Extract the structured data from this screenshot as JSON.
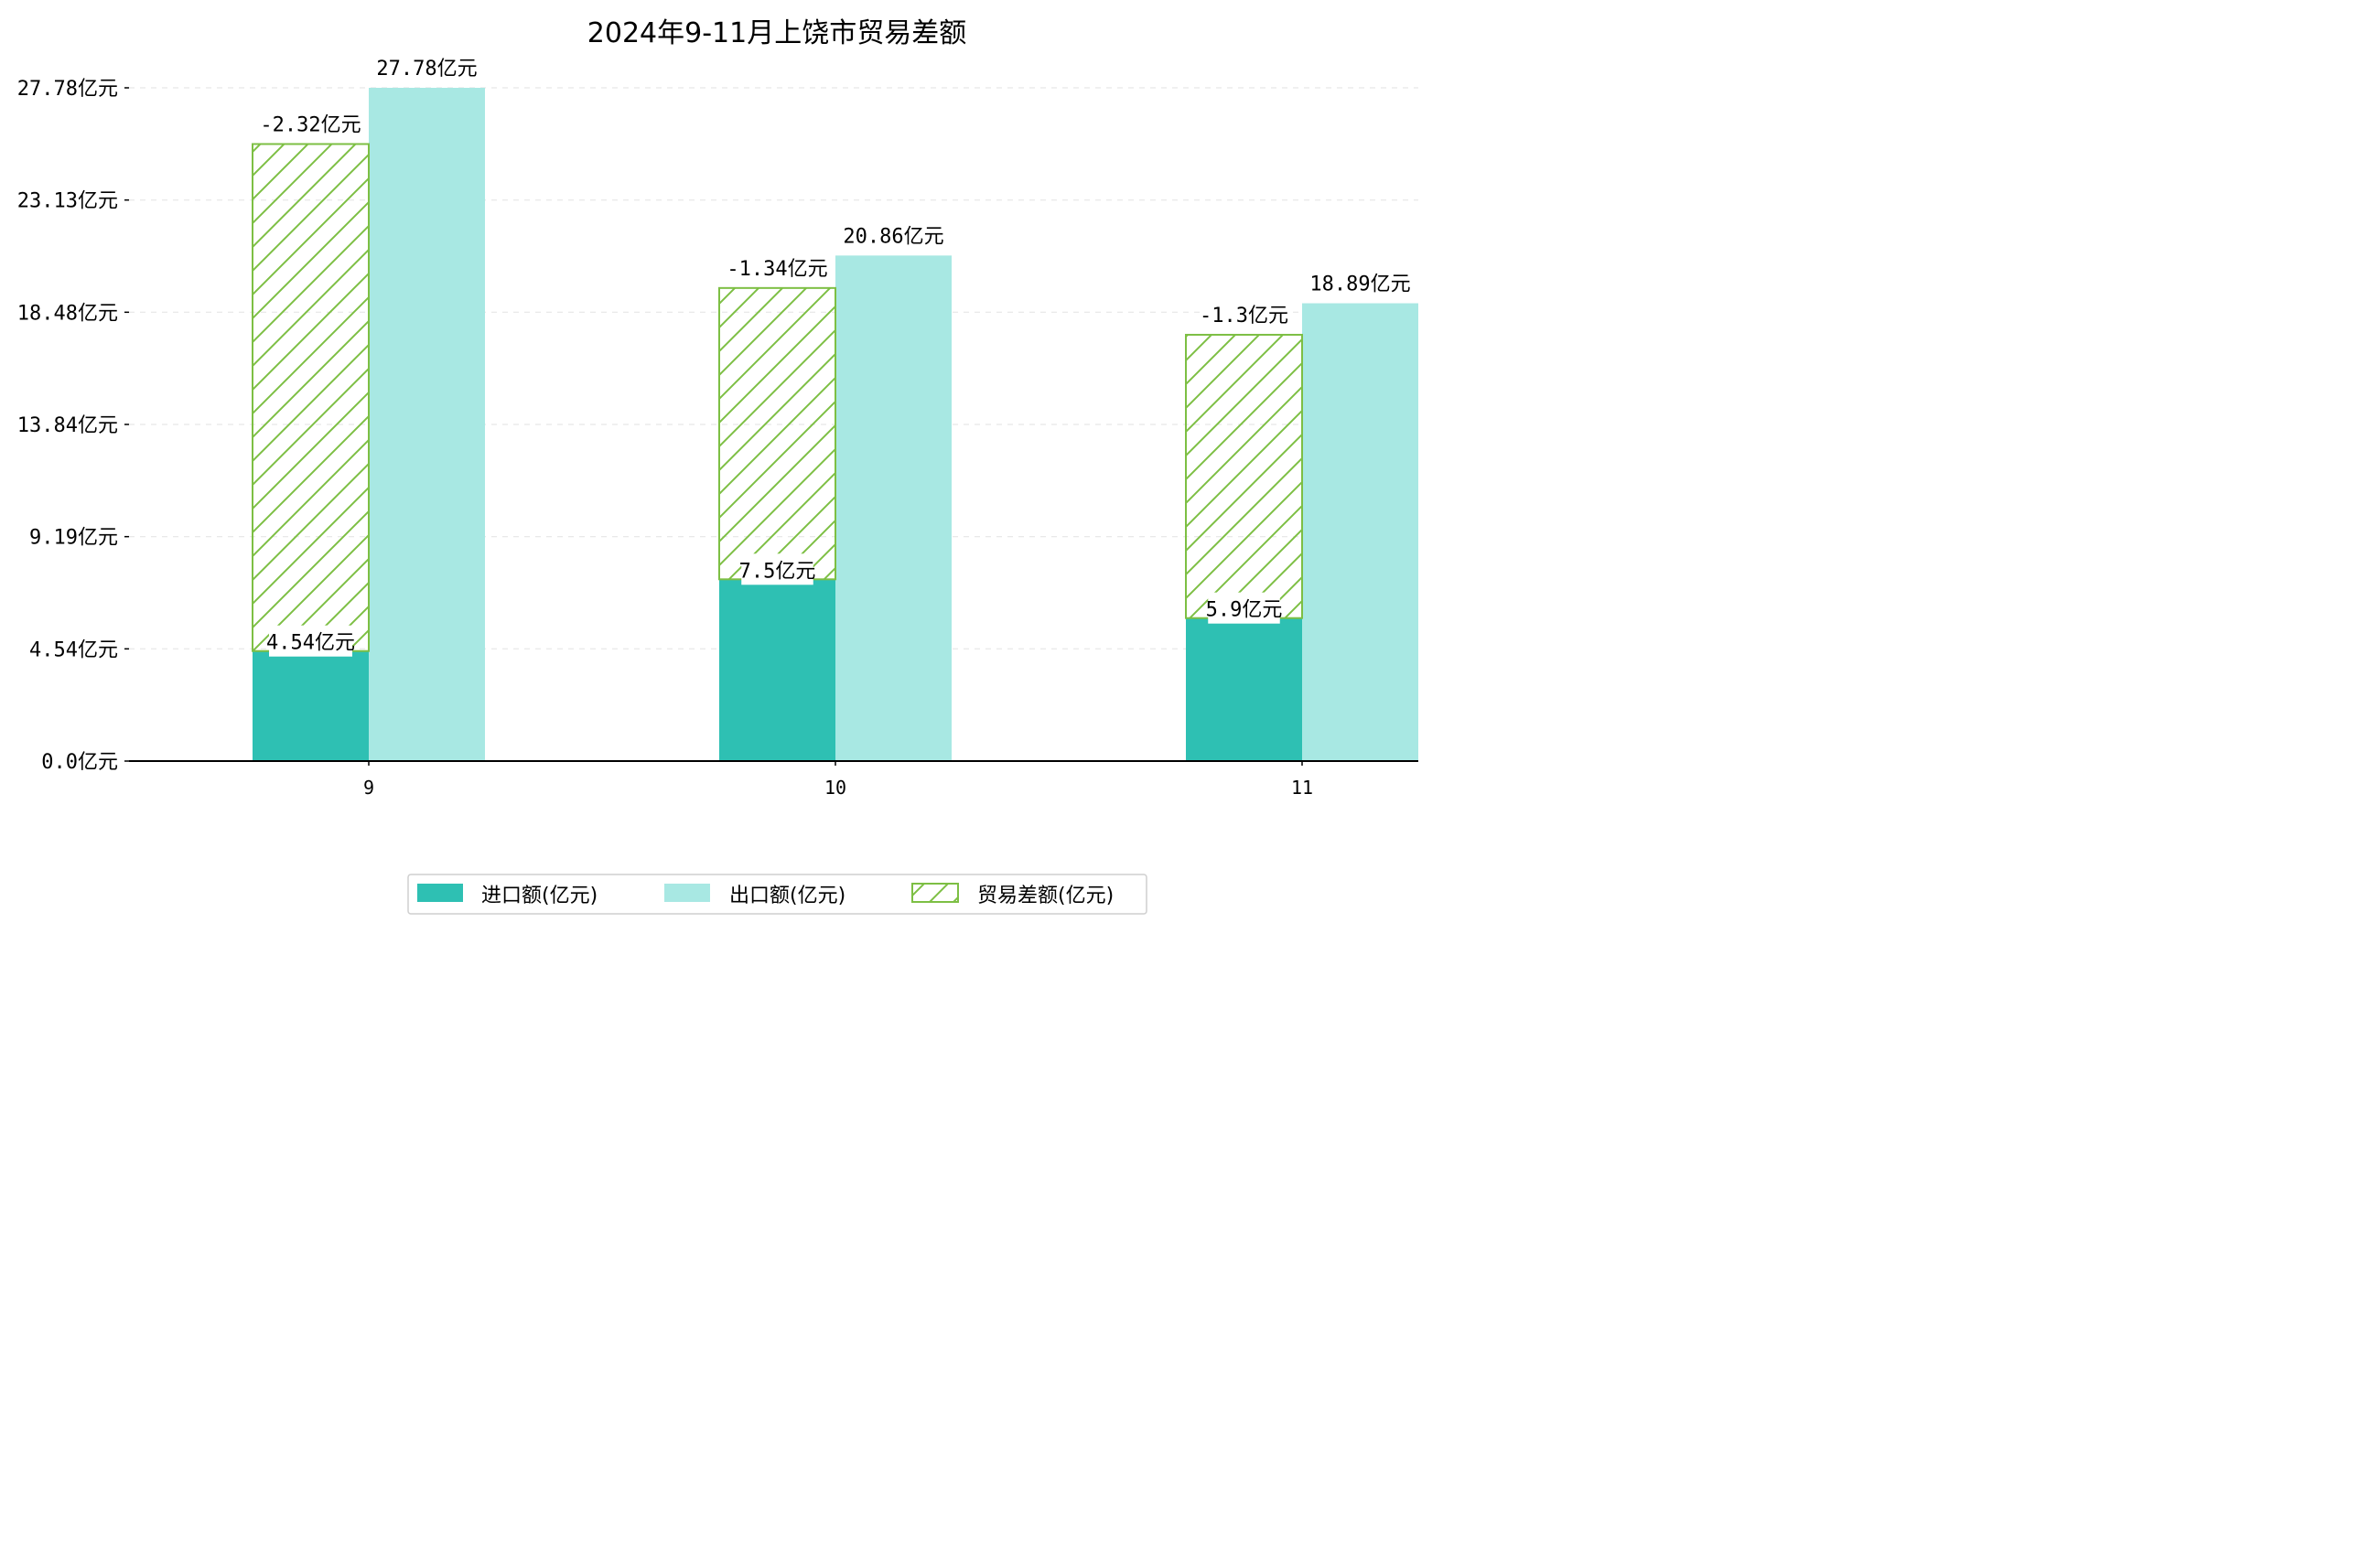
{
  "chart_data": {
    "type": "bar",
    "title": "2024年9-11月上饶市贸易差额",
    "categories": [
      "9",
      "10",
      "11"
    ],
    "unit": "亿元",
    "yticks": [
      "0.0亿元",
      "4.54亿元",
      "9.19亿元",
      "13.84亿元",
      "18.48亿元",
      "23.13亿元",
      "27.78亿元"
    ],
    "ylim": [
      0,
      27.78
    ],
    "series": [
      {
        "name": "进口额(亿元)",
        "values": [
          4.54,
          7.5,
          5.9
        ],
        "labels": [
          "4.54亿元",
          "7.5亿元",
          "5.9亿元"
        ],
        "color": "#2ec0b3"
      },
      {
        "name": "出口额(亿元)",
        "values": [
          27.78,
          20.86,
          18.89
        ],
        "labels": [
          "27.78亿元",
          "20.86亿元",
          "18.89亿元"
        ],
        "color": "#a8e8e3"
      },
      {
        "name": "贸易差额(亿元)",
        "values": [
          -2.32,
          -1.34,
          -1.3
        ],
        "labels": [
          "-2.32亿元",
          "-1.34亿元",
          "-1.3亿元"
        ],
        "color": "#7dbf44"
      }
    ],
    "grid": "horizontal dashed",
    "legend": "bottom-center"
  }
}
